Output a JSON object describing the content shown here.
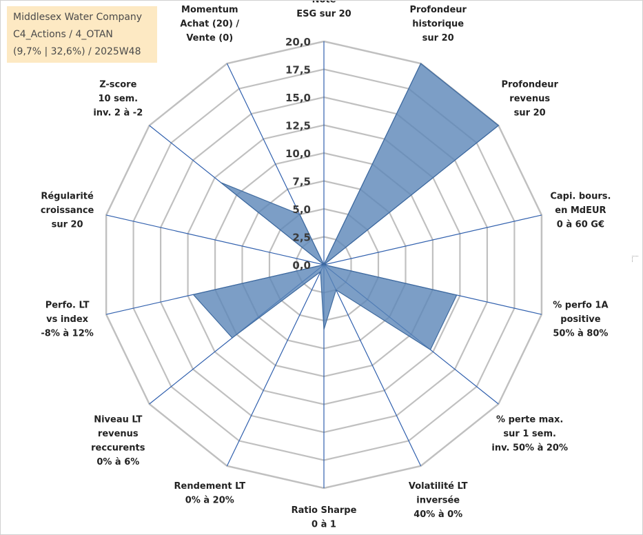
{
  "title_box": {
    "line1": "Middlesex Water Company",
    "line2": "C4_Actions / 4_OTAN",
    "line3": "(9,7% | 32,6%) / 2025W48"
  },
  "chart_data": {
    "type": "radar",
    "title": "",
    "rmax": 20,
    "tick_labels": [
      "0,0",
      "2,5",
      "5,0",
      "7,5",
      "10,0",
      "12,5",
      "15,0",
      "17,5",
      "20,0"
    ],
    "grid": true,
    "axes": [
      [
        "Note",
        "ESG sur 20"
      ],
      [
        "Profondeur",
        "historique",
        "sur 20"
      ],
      [
        "Profondeur",
        "revenus",
        "sur 20"
      ],
      [
        "Capi. bours.",
        "en MdEUR",
        "0 à 60 G€"
      ],
      [
        "% perfo 1A",
        "positive",
        "50% à 80%"
      ],
      [
        "% perte max.",
        "sur 1 sem.",
        "inv. 50% à 20%"
      ],
      [
        "Volatilité LT",
        "inversée",
        "40% à 0%"
      ],
      [
        "Ratio Sharpe",
        "0 à 1"
      ],
      [
        "Rendement LT",
        "0% à 20%"
      ],
      [
        "Niveau LT",
        "revenus",
        "reccurents",
        "0% à 6%"
      ],
      [
        "Perfo. LT",
        "vs index",
        "-8% à 12%"
      ],
      [
        "Régularité",
        "croissance",
        "sur 20"
      ],
      [
        "Z-score",
        "10 sem.",
        "inv. 2 à -2"
      ],
      [
        "Momentum",
        "Achat (20) /",
        "Vente (0)"
      ]
    ],
    "series": [
      {
        "values": [
          0,
          20,
          20,
          0,
          12.2,
          12.2,
          2.5,
          5.8,
          0.7,
          10.5,
          12.0,
          0,
          11.8,
          5.0
        ],
        "fill": "#5b86b8",
        "fill_opacity": 0.8,
        "stroke": "#3f6a9e"
      }
    ],
    "colors": {
      "grid": "#c0c0c0",
      "spoke": "#2f5fad"
    }
  }
}
